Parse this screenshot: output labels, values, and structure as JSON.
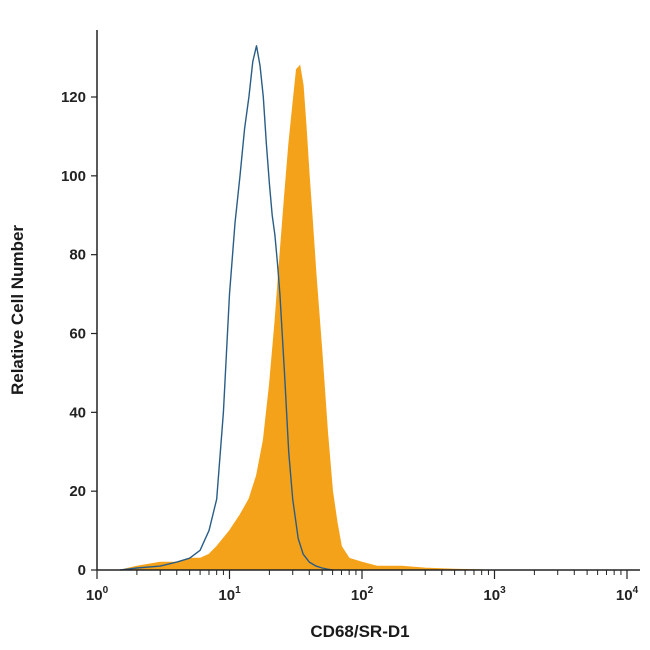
{
  "chart_data": {
    "type": "area",
    "xlabel": "CD68/SR-D1",
    "ylabel": "Relative Cell Number",
    "x_scale": "log",
    "xlim": [
      1,
      10000
    ],
    "ylim": [
      0,
      137
    ],
    "y_ticks": [
      0,
      20,
      40,
      60,
      80,
      100,
      120
    ],
    "x_ticks": [
      {
        "value": 1,
        "base": "10",
        "exp": "0"
      },
      {
        "value": 10,
        "base": "10",
        "exp": "1"
      },
      {
        "value": 100,
        "base": "10",
        "exp": "2"
      },
      {
        "value": 1000,
        "base": "10",
        "exp": "3"
      },
      {
        "value": 10000,
        "base": "10",
        "exp": "4"
      }
    ],
    "grid": false,
    "legend": "none",
    "series": [
      {
        "style": "filled",
        "color": "#f5a21b",
        "x": [
          1.5,
          2,
          3,
          4,
          5,
          6,
          7,
          8,
          10,
          12,
          14,
          16,
          18,
          20,
          22,
          24,
          26,
          28,
          30,
          32,
          34,
          36,
          38,
          40,
          42,
          45,
          50,
          55,
          60,
          65,
          70,
          80,
          100,
          130,
          160,
          200,
          300,
          500,
          1000
        ],
        "y": [
          0,
          1,
          2,
          2,
          3,
          3,
          4,
          6,
          10,
          14,
          18,
          24,
          33,
          47,
          63,
          80,
          95,
          108,
          118,
          127,
          128,
          123,
          112,
          100,
          90,
          75,
          55,
          35,
          20,
          12,
          6,
          3,
          2,
          1,
          1,
          1,
          0.5,
          0.2,
          0
        ]
      },
      {
        "style": "outline",
        "color": "#2a5d86",
        "x": [
          1.5,
          2,
          3,
          4,
          5,
          6,
          7,
          8,
          9,
          10,
          11,
          12,
          13,
          14,
          15,
          16,
          17,
          18,
          19,
          20,
          21,
          22,
          23,
          24,
          26,
          28,
          30,
          33,
          36,
          40,
          45,
          50,
          55,
          60
        ],
        "y": [
          0,
          0.5,
          1,
          2,
          3,
          5,
          10,
          18,
          40,
          70,
          88,
          100,
          112,
          120,
          129,
          133,
          128,
          120,
          108,
          98,
          90,
          85,
          78,
          70,
          50,
          30,
          18,
          8,
          4,
          2,
          1,
          0.5,
          0.2,
          0
        ]
      }
    ]
  }
}
